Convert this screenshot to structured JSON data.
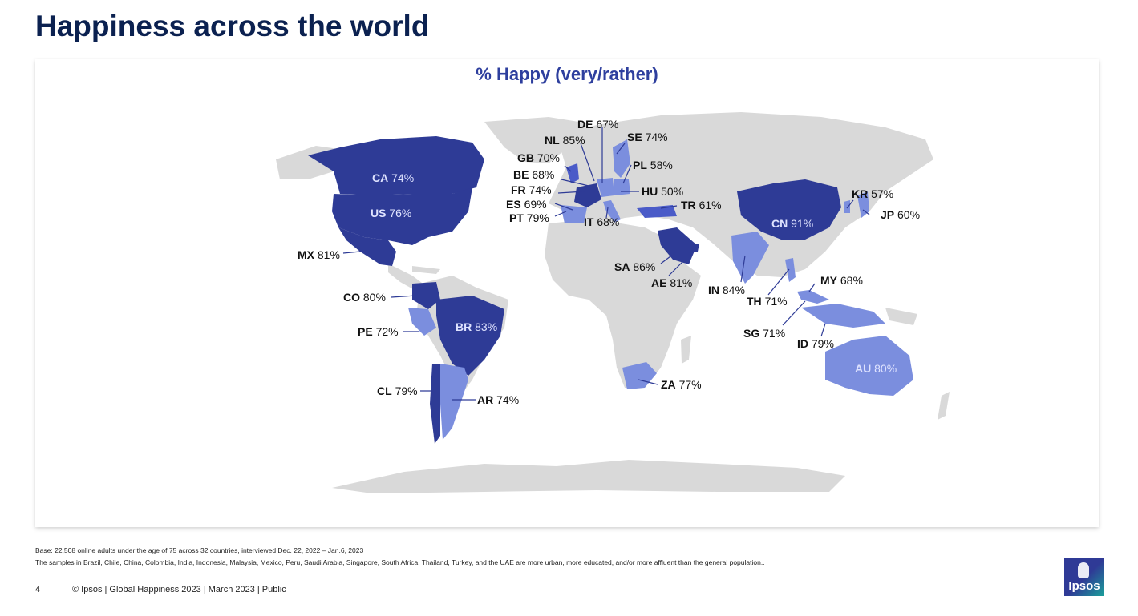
{
  "page": {
    "title": "Happiness across the world",
    "page_number": "4",
    "footer": "© Ipsos | Global Happiness 2023 | March 2023 | Public",
    "base_note": "Base: 22,508 online adults under the age of 75 across 32 countries, interviewed Dec. 22, 2022 – Jan.6, 2023",
    "sample_note": "The samples in Brazil, Chile, China, Colombia, India, Indonesia, Malaysia, Mexico, Peru, Saudi Arabia, Singapore, South Africa, Thailand, Turkey, and the UAE are more urban, more educated, and/or more affluent than the general population..",
    "logo_text": "Ipsos"
  },
  "map": {
    "title": "% Happy (very/rather)",
    "colors": {
      "land": "#d9d9d9",
      "high": "#2e3b96",
      "mid": "#4a5bc8",
      "low": "#7b8ede",
      "inside_label": "#dfe3ff"
    },
    "countries": [
      {
        "code": "CA",
        "value": "74%"
      },
      {
        "code": "US",
        "value": "76%"
      },
      {
        "code": "MX",
        "value": "81%"
      },
      {
        "code": "CO",
        "value": "80%"
      },
      {
        "code": "PE",
        "value": "72%"
      },
      {
        "code": "BR",
        "value": "83%"
      },
      {
        "code": "CL",
        "value": "79%"
      },
      {
        "code": "AR",
        "value": "74%"
      },
      {
        "code": "DE",
        "value": "67%"
      },
      {
        "code": "NL",
        "value": "85%"
      },
      {
        "code": "SE",
        "value": "74%"
      },
      {
        "code": "GB",
        "value": "70%"
      },
      {
        "code": "PL",
        "value": "58%"
      },
      {
        "code": "BE",
        "value": "68%"
      },
      {
        "code": "FR",
        "value": "74%"
      },
      {
        "code": "HU",
        "value": "50%"
      },
      {
        "code": "ES",
        "value": "69%"
      },
      {
        "code": "TR",
        "value": "61%"
      },
      {
        "code": "PT",
        "value": "79%"
      },
      {
        "code": "IT",
        "value": "68%"
      },
      {
        "code": "SA",
        "value": "86%"
      },
      {
        "code": "AE",
        "value": "81%"
      },
      {
        "code": "IN",
        "value": "84%"
      },
      {
        "code": "TH",
        "value": "71%"
      },
      {
        "code": "CN",
        "value": "91%"
      },
      {
        "code": "KR",
        "value": "57%"
      },
      {
        "code": "JP",
        "value": "60%"
      },
      {
        "code": "MY",
        "value": "68%"
      },
      {
        "code": "SG",
        "value": "71%"
      },
      {
        "code": "ID",
        "value": "79%"
      },
      {
        "code": "AU",
        "value": "80%"
      },
      {
        "code": "ZA",
        "value": "77%"
      }
    ]
  }
}
